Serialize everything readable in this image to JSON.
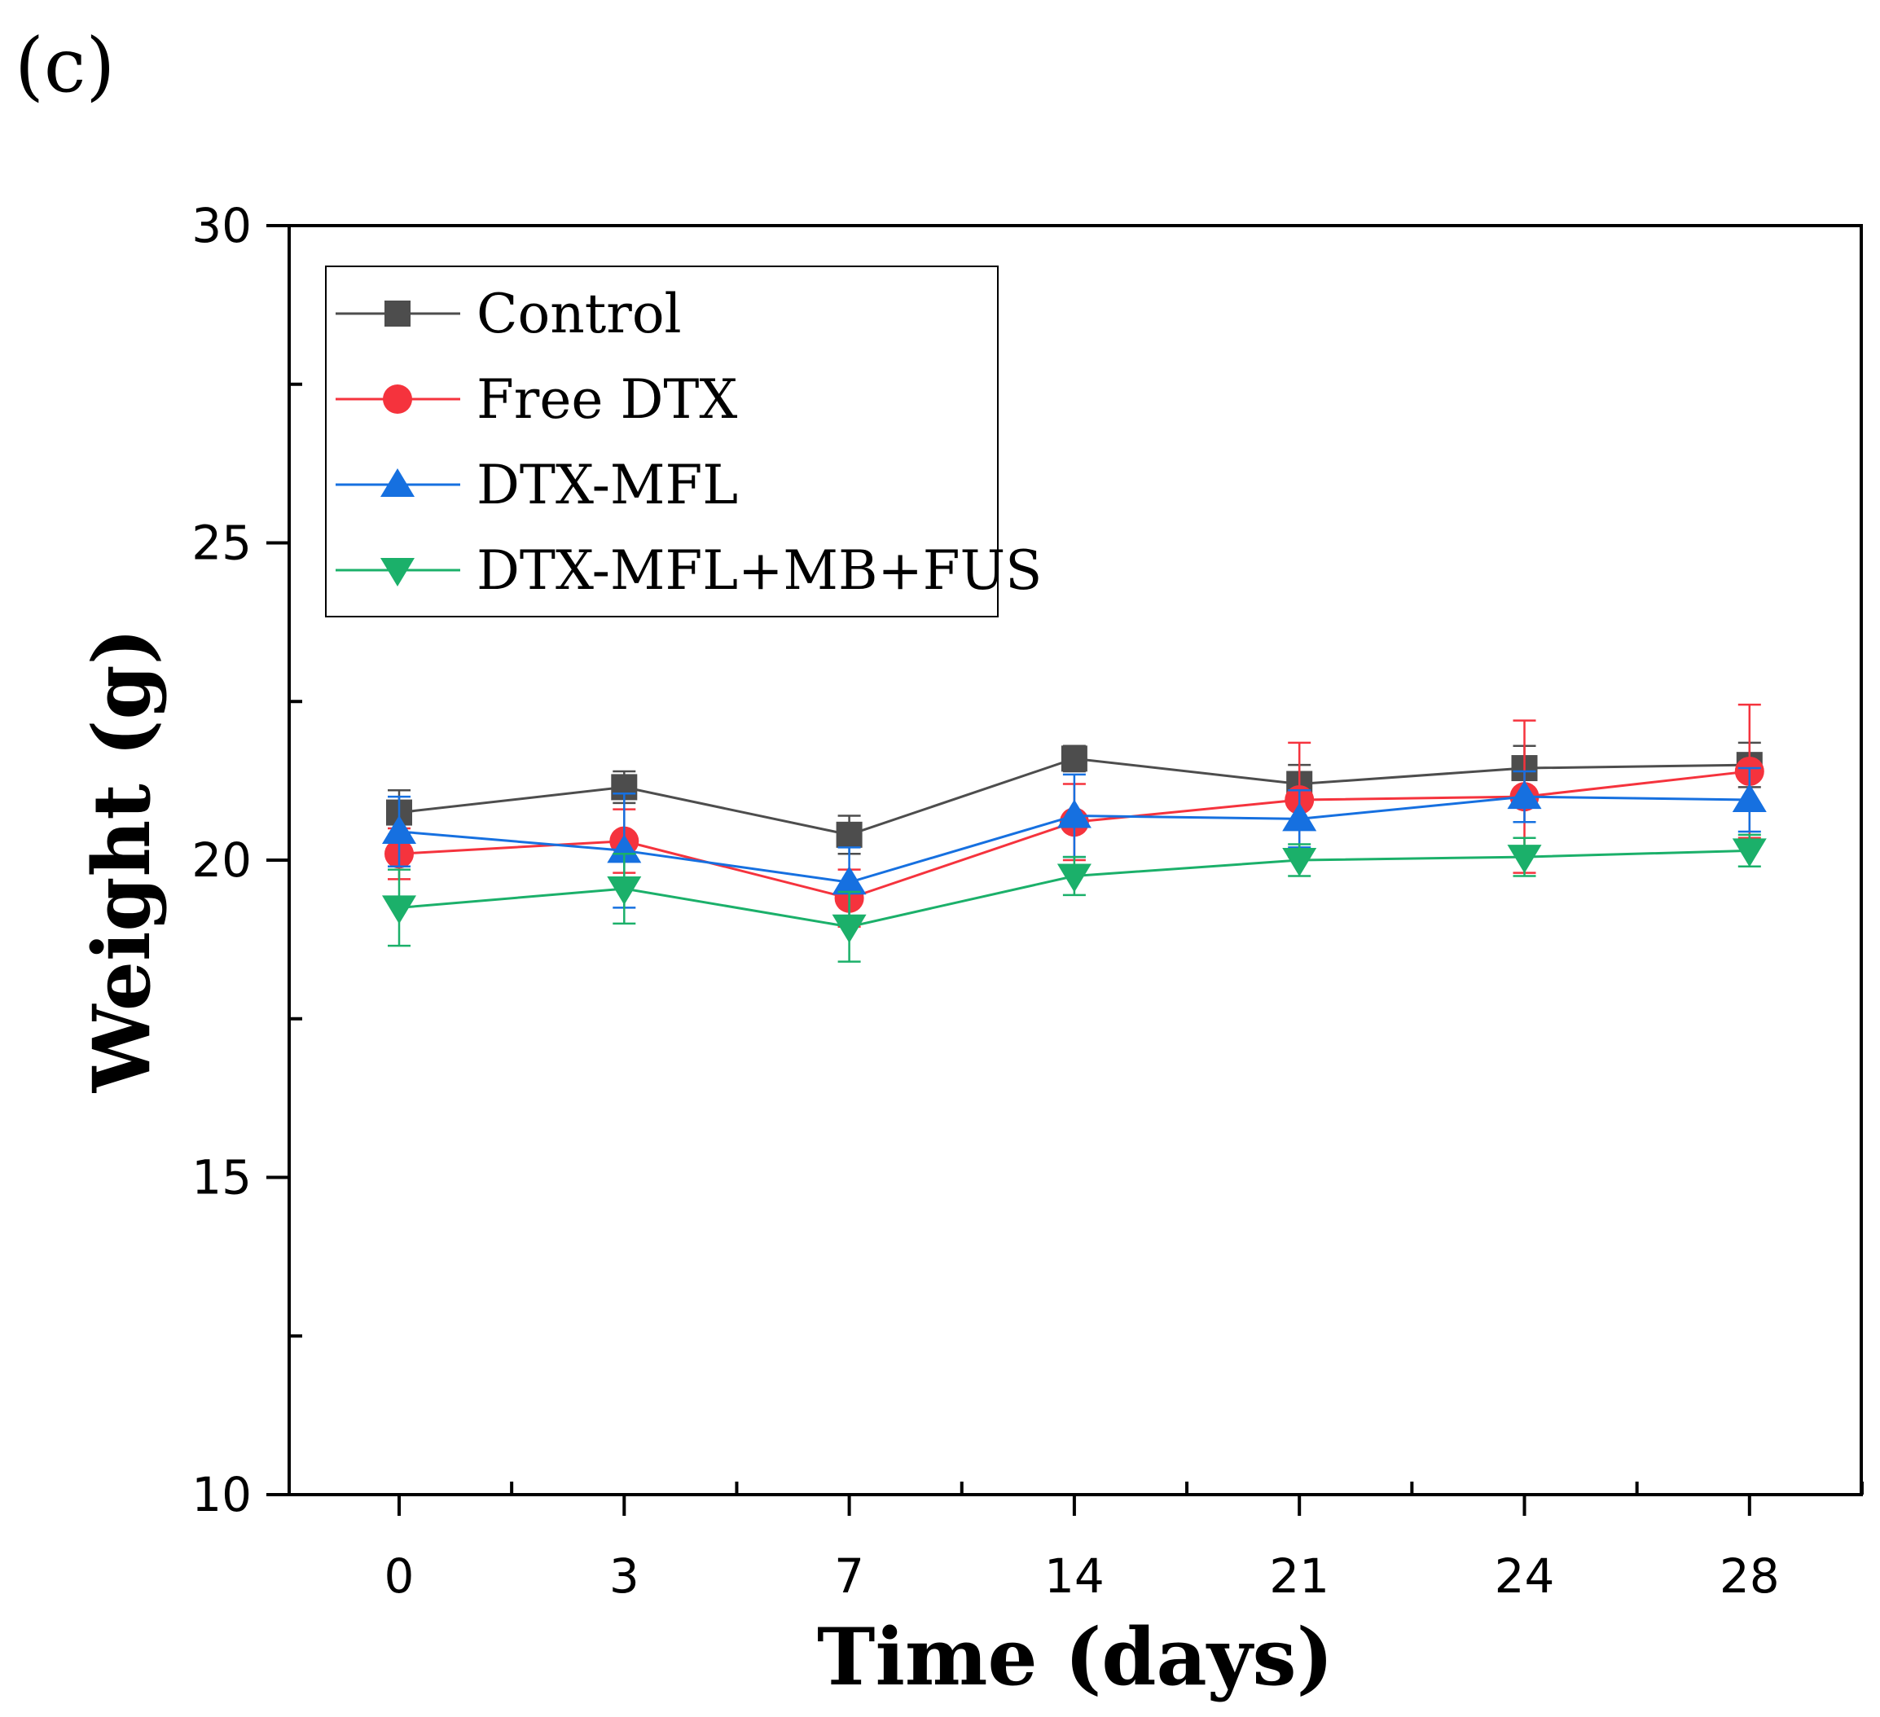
{
  "chart_data": {
    "type": "line",
    "panel_label": "(c)",
    "title": "",
    "xlabel": "Time (days)",
    "ylabel": "Weight (g)",
    "categories": [
      "0",
      "3",
      "7",
      "14",
      "21",
      "24",
      "28"
    ],
    "ylim": [
      10,
      30
    ],
    "yticks": [
      "10",
      "15",
      "20",
      "25",
      "30"
    ],
    "grid": false,
    "legend_position": "top-left",
    "series": [
      {
        "name": "Control",
        "color": "#4d4d4d",
        "marker": "square",
        "values": [
          20.75,
          21.15,
          20.4,
          21.6,
          21.2,
          21.45,
          21.5
        ],
        "errors": [
          0.35,
          0.25,
          0.3,
          0.2,
          0.3,
          0.35,
          0.35
        ]
      },
      {
        "name": "Free DTX",
        "color": "#f5333d",
        "marker": "circle",
        "values": [
          20.1,
          20.3,
          19.4,
          20.6,
          20.95,
          21.0,
          21.4
        ],
        "errors": [
          0.4,
          0.5,
          0.45,
          0.6,
          0.9,
          1.2,
          1.05
        ]
      },
      {
        "name": "DTX-MFL",
        "color": "#1670e0",
        "marker": "triangle-up",
        "values": [
          20.45,
          20.15,
          19.65,
          20.7,
          20.65,
          21.0,
          20.95
        ],
        "errors": [
          0.55,
          0.9,
          0.55,
          0.65,
          0.45,
          0.4,
          0.5
        ]
      },
      {
        "name": "DTX-MFL+MB+FUS",
        "color": "#1bb06a",
        "marker": "triangle-down",
        "values": [
          19.25,
          19.55,
          18.95,
          19.75,
          20.0,
          20.05,
          20.15
        ],
        "errors": [
          0.6,
          0.55,
          0.55,
          0.3,
          0.25,
          0.3,
          0.25
        ]
      }
    ]
  }
}
